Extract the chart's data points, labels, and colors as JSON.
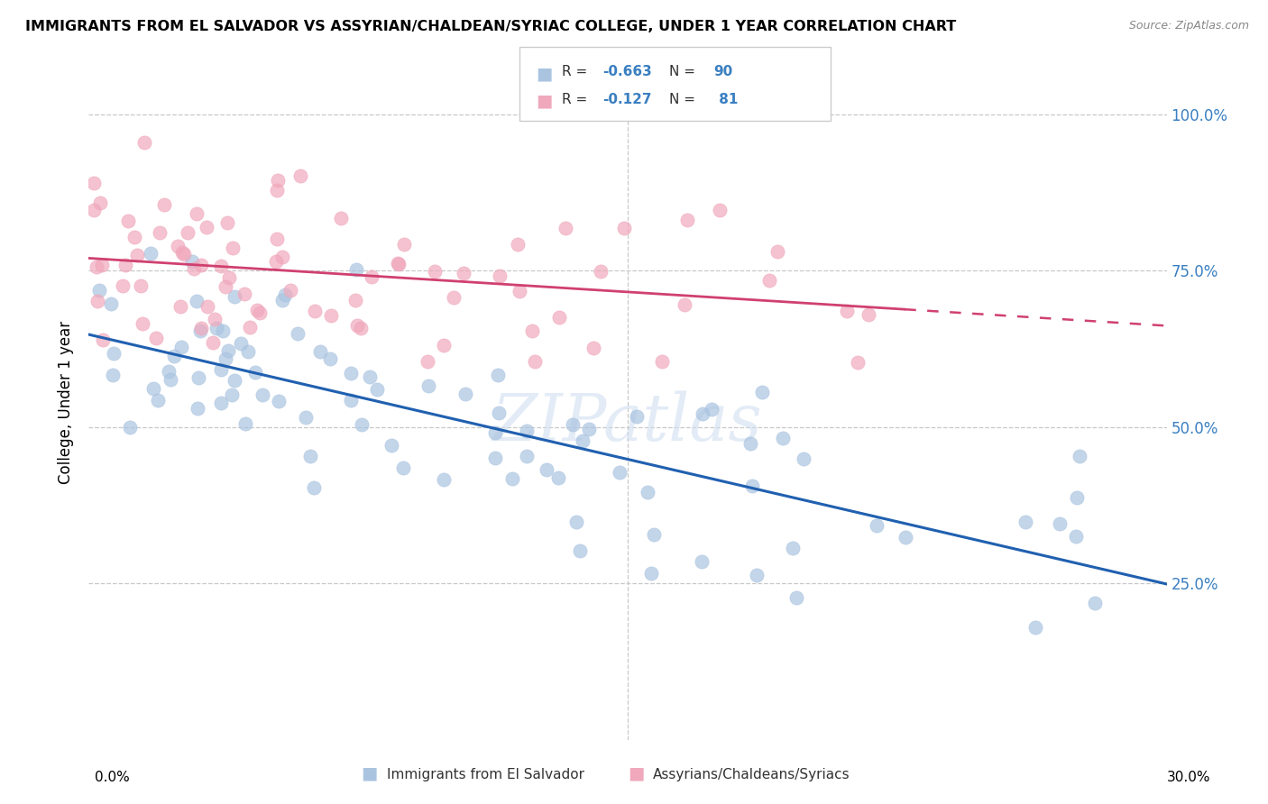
{
  "title": "IMMIGRANTS FROM EL SALVADOR VS ASSYRIAN/CHALDEAN/SYRIAC COLLEGE, UNDER 1 YEAR CORRELATION CHART",
  "source": "Source: ZipAtlas.com",
  "ylabel": "College, Under 1 year",
  "legend_blue_r": "-0.663",
  "legend_blue_n": "90",
  "legend_pink_r": "-0.127",
  "legend_pink_n": "81",
  "blue_color": "#aac4e0",
  "pink_color": "#f0a8bc",
  "blue_line_color": "#2060b0",
  "pink_line_color": "#d04070",
  "background_color": "#ffffff",
  "grid_color": "#c8c8c8",
  "xmin": 0.0,
  "xmax": 0.3,
  "ymin": 0.0,
  "ymax": 1.08,
  "watermark": "ZIPatlas",
  "watermark_color": "#d0dff0"
}
